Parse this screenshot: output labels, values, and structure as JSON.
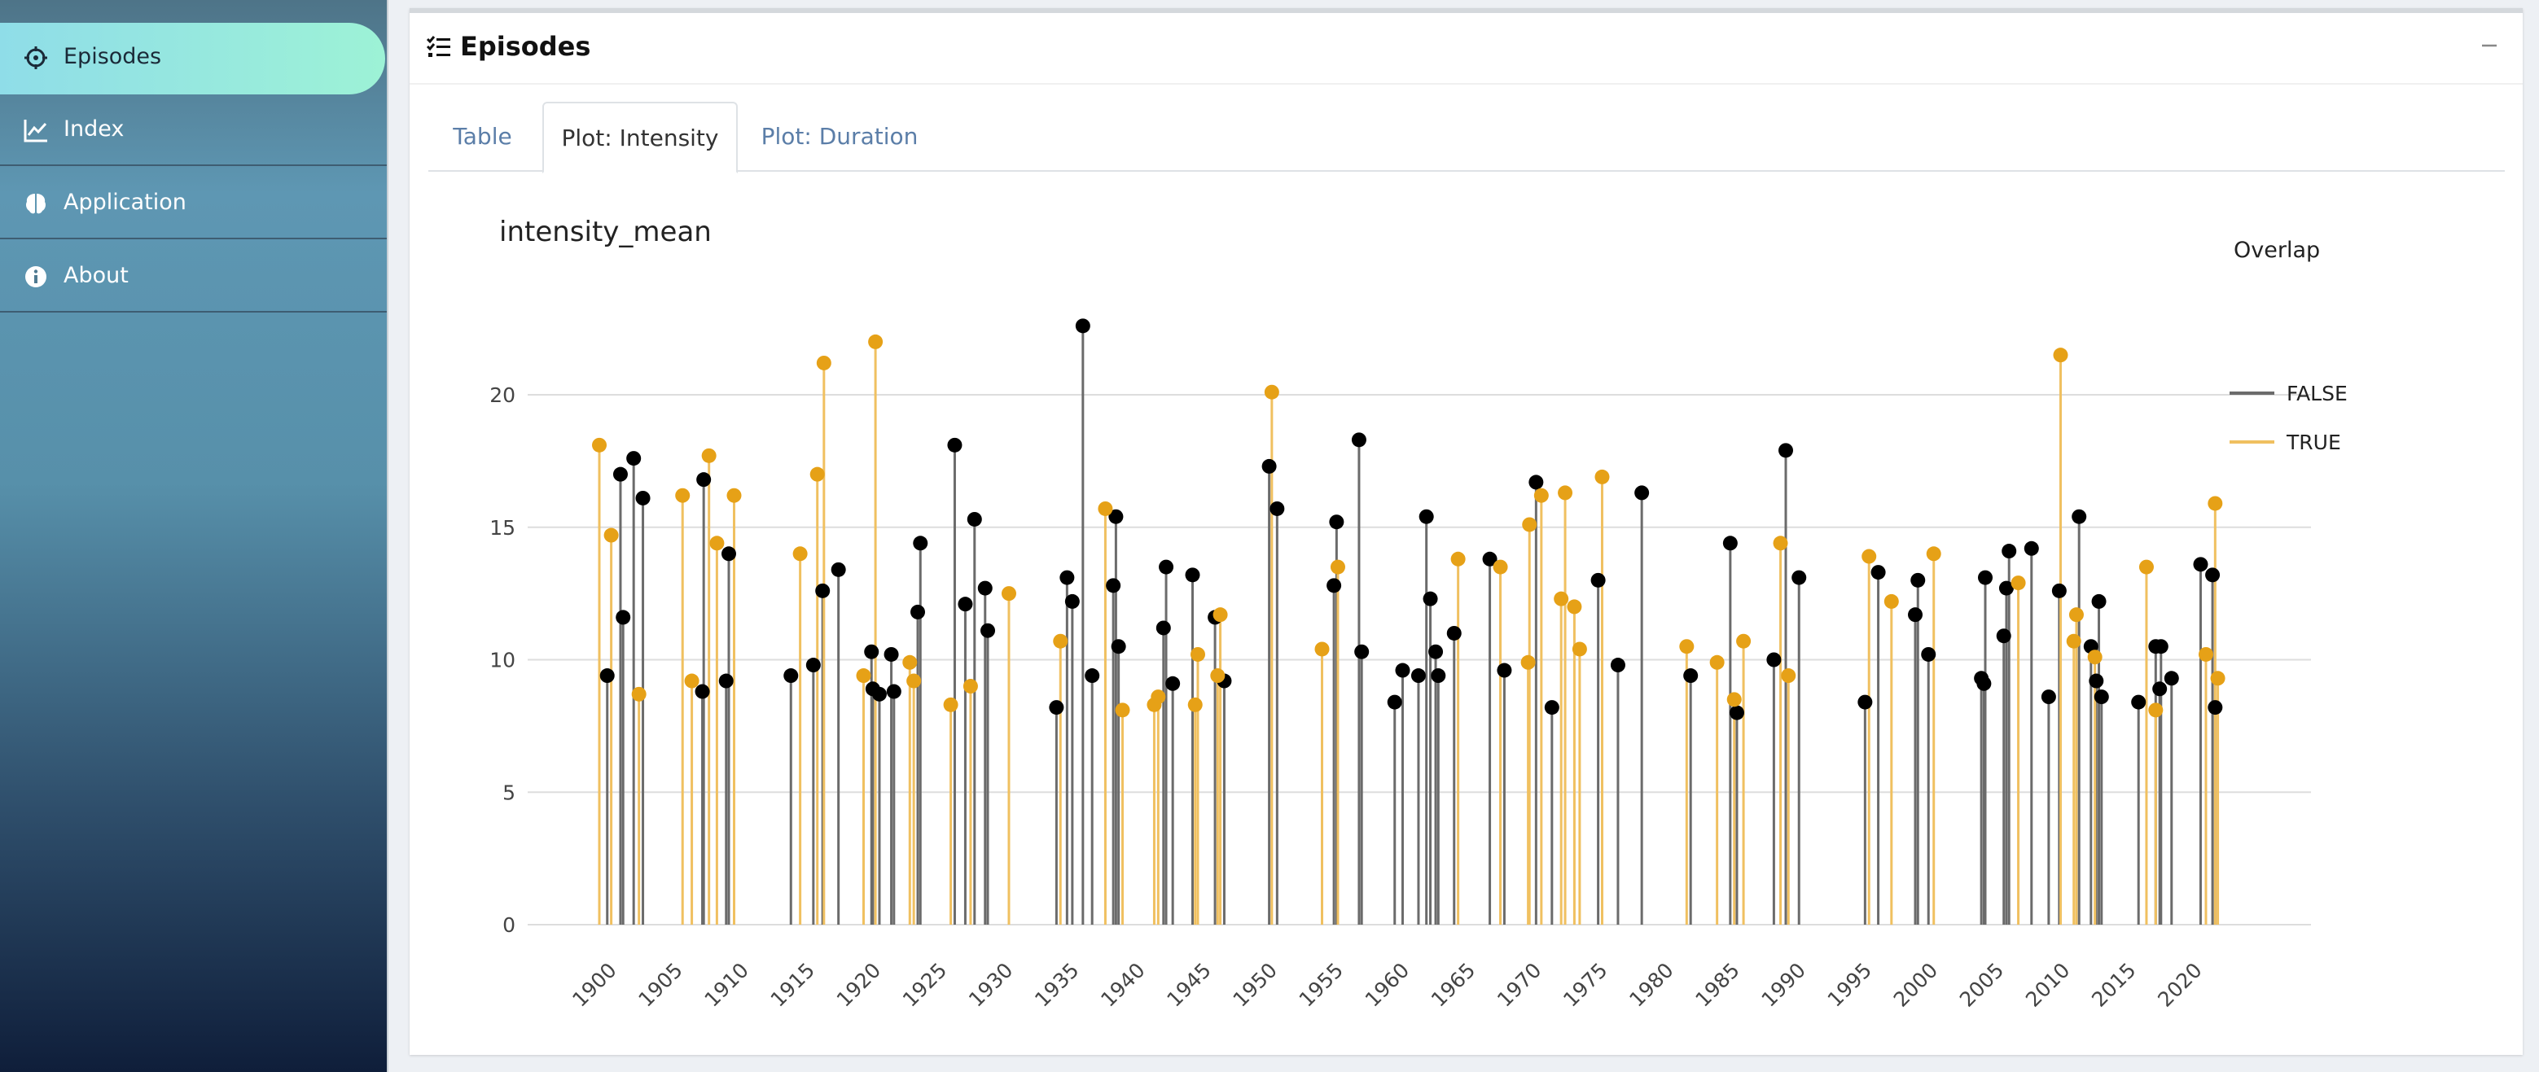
{
  "sidebar": {
    "items": [
      {
        "label": "Episodes",
        "icon": "crosshair-icon"
      },
      {
        "label": "Index",
        "icon": "line-chart-icon"
      },
      {
        "label": "Application",
        "icon": "brain-icon"
      },
      {
        "label": "About",
        "icon": "info-icon"
      }
    ]
  },
  "box": {
    "title": "Episodes",
    "collapse_symbol": "−"
  },
  "tabs": [
    {
      "label": "Table"
    },
    {
      "label": "Plot: Intensity"
    },
    {
      "label": "Plot: Duration"
    }
  ],
  "colors": {
    "false": "#6b6b6b",
    "true": "#f0c060",
    "point_false": "#000000",
    "point_true": "#e6a117"
  },
  "chart_data": {
    "type": "scatter",
    "subtype": "lollipop",
    "title": "intensity_mean",
    "xlabel": "",
    "ylabel": "",
    "xlim": [
      1898,
      2027
    ],
    "ylim": [
      0,
      23
    ],
    "yticks": [
      0,
      5,
      10,
      15,
      20
    ],
    "xticks": [
      1900,
      1905,
      1910,
      1915,
      1920,
      1925,
      1930,
      1935,
      1940,
      1945,
      1950,
      1955,
      1960,
      1965,
      1970,
      1975,
      1980,
      1985,
      1990,
      1995,
      2000,
      2005,
      2010,
      2015,
      2020
    ],
    "legend": {
      "title": "Overlap",
      "position": "right"
    },
    "series": [
      {
        "name": "FALSE",
        "points": [
          [
            1900.6,
            9.4
          ],
          [
            1901.6,
            17.0
          ],
          [
            1901.8,
            11.6
          ],
          [
            1902.6,
            17.6
          ],
          [
            1903.3,
            16.1
          ],
          [
            1907.8,
            8.8
          ],
          [
            1907.9,
            16.8
          ],
          [
            1909.6,
            9.2
          ],
          [
            1909.8,
            14.0
          ],
          [
            1914.5,
            9.4
          ],
          [
            1916.2,
            9.8
          ],
          [
            1916.9,
            12.6
          ],
          [
            1918.1,
            13.4
          ],
          [
            1920.6,
            10.3
          ],
          [
            1920.7,
            8.9
          ],
          [
            1921.2,
            8.7
          ],
          [
            1922.1,
            10.2
          ],
          [
            1922.3,
            8.8
          ],
          [
            1924.1,
            11.8
          ],
          [
            1924.3,
            14.4
          ],
          [
            1926.9,
            18.1
          ],
          [
            1927.7,
            12.1
          ],
          [
            1928.4,
            15.3
          ],
          [
            1929.2,
            12.7
          ],
          [
            1929.4,
            11.1
          ],
          [
            1934.6,
            8.2
          ],
          [
            1935.4,
            13.1
          ],
          [
            1935.8,
            12.2
          ],
          [
            1936.6,
            22.6
          ],
          [
            1937.3,
            9.4
          ],
          [
            1938.9,
            12.8
          ],
          [
            1939.1,
            15.4
          ],
          [
            1939.3,
            10.5
          ],
          [
            1942.7,
            11.2
          ],
          [
            1942.9,
            13.5
          ],
          [
            1943.4,
            9.1
          ],
          [
            1944.9,
            13.2
          ],
          [
            1946.6,
            11.6
          ],
          [
            1947.3,
            9.2
          ],
          [
            1950.7,
            17.3
          ],
          [
            1951.3,
            15.7
          ],
          [
            1955.6,
            12.8
          ],
          [
            1955.8,
            15.2
          ],
          [
            1957.5,
            18.3
          ],
          [
            1957.7,
            10.3
          ],
          [
            1960.2,
            8.4
          ],
          [
            1960.8,
            9.6
          ],
          [
            1962.0,
            9.4
          ],
          [
            1962.6,
            15.4
          ],
          [
            1962.9,
            12.3
          ],
          [
            1963.3,
            10.3
          ],
          [
            1963.5,
            9.4
          ],
          [
            1964.7,
            11.0
          ],
          [
            1967.4,
            13.8
          ],
          [
            1968.5,
            9.6
          ],
          [
            1970.9,
            16.7
          ],
          [
            1972.1,
            8.2
          ],
          [
            1975.6,
            13.0
          ],
          [
            1977.1,
            9.8
          ],
          [
            1978.9,
            16.3
          ],
          [
            1982.6,
            9.4
          ],
          [
            1985.6,
            14.4
          ],
          [
            1986.1,
            8.0
          ],
          [
            1988.9,
            10.0
          ],
          [
            1989.8,
            17.9
          ],
          [
            1990.8,
            13.1
          ],
          [
            1995.8,
            8.4
          ],
          [
            1996.8,
            13.3
          ],
          [
            1999.6,
            11.7
          ],
          [
            1999.8,
            13.0
          ],
          [
            2000.6,
            10.2
          ],
          [
            2004.6,
            9.3
          ],
          [
            2004.8,
            9.1
          ],
          [
            2004.9,
            13.1
          ],
          [
            2006.3,
            10.9
          ],
          [
            2006.5,
            12.7
          ],
          [
            2006.7,
            14.1
          ],
          [
            2008.4,
            14.2
          ],
          [
            2009.7,
            8.6
          ],
          [
            2010.5,
            12.6
          ],
          [
            2012.0,
            15.4
          ],
          [
            2012.9,
            10.5
          ],
          [
            2013.3,
            9.2
          ],
          [
            2013.5,
            12.2
          ],
          [
            2013.7,
            8.6
          ],
          [
            2016.5,
            8.4
          ],
          [
            2017.8,
            10.5
          ],
          [
            2018.1,
            8.9
          ],
          [
            2018.2,
            10.5
          ],
          [
            2019.0,
            9.3
          ],
          [
            2021.2,
            13.6
          ],
          [
            2022.1,
            13.2
          ],
          [
            2022.3,
            8.2
          ]
        ]
      },
      {
        "name": "TRUE",
        "points": [
          [
            1900.0,
            18.1
          ],
          [
            1900.9,
            14.7
          ],
          [
            1903.0,
            8.7
          ],
          [
            1906.3,
            16.2
          ],
          [
            1907.0,
            9.2
          ],
          [
            1908.3,
            17.7
          ],
          [
            1908.9,
            14.4
          ],
          [
            1910.2,
            16.2
          ],
          [
            1915.2,
            14.0
          ],
          [
            1916.5,
            17.0
          ],
          [
            1917.0,
            21.2
          ],
          [
            1920.0,
            9.4
          ],
          [
            1920.9,
            22.0
          ],
          [
            1923.5,
            9.9
          ],
          [
            1923.8,
            9.2
          ],
          [
            1926.6,
            8.3
          ],
          [
            1928.1,
            9.0
          ],
          [
            1931.0,
            12.5
          ],
          [
            1934.9,
            10.7
          ],
          [
            1938.3,
            15.7
          ],
          [
            1939.6,
            8.1
          ],
          [
            1942.0,
            8.3
          ],
          [
            1942.3,
            8.6
          ],
          [
            1945.1,
            8.3
          ],
          [
            1945.3,
            10.2
          ],
          [
            1946.8,
            9.4
          ],
          [
            1947.0,
            11.7
          ],
          [
            1950.9,
            20.1
          ],
          [
            1954.7,
            10.4
          ],
          [
            1955.9,
            13.5
          ],
          [
            1965.0,
            13.8
          ],
          [
            1968.2,
            13.5
          ],
          [
            1970.3,
            9.9
          ],
          [
            1970.4,
            15.1
          ],
          [
            1971.3,
            16.2
          ],
          [
            1972.8,
            12.3
          ],
          [
            1973.1,
            16.3
          ],
          [
            1973.8,
            12.0
          ],
          [
            1974.2,
            10.4
          ],
          [
            1975.9,
            16.9
          ],
          [
            1982.3,
            10.5
          ],
          [
            1984.6,
            9.9
          ],
          [
            1985.9,
            8.5
          ],
          [
            1986.6,
            10.7
          ],
          [
            1989.4,
            14.4
          ],
          [
            1990.0,
            9.4
          ],
          [
            1996.1,
            13.9
          ],
          [
            1997.8,
            12.2
          ],
          [
            2001.0,
            14.0
          ],
          [
            2007.4,
            12.9
          ],
          [
            2010.6,
            21.5
          ],
          [
            2011.6,
            10.7
          ],
          [
            2011.8,
            11.7
          ],
          [
            2013.2,
            10.1
          ],
          [
            2017.1,
            13.5
          ],
          [
            2017.8,
            8.1
          ],
          [
            2021.6,
            10.2
          ],
          [
            2022.3,
            15.9
          ],
          [
            2022.5,
            9.3
          ]
        ]
      }
    ]
  }
}
